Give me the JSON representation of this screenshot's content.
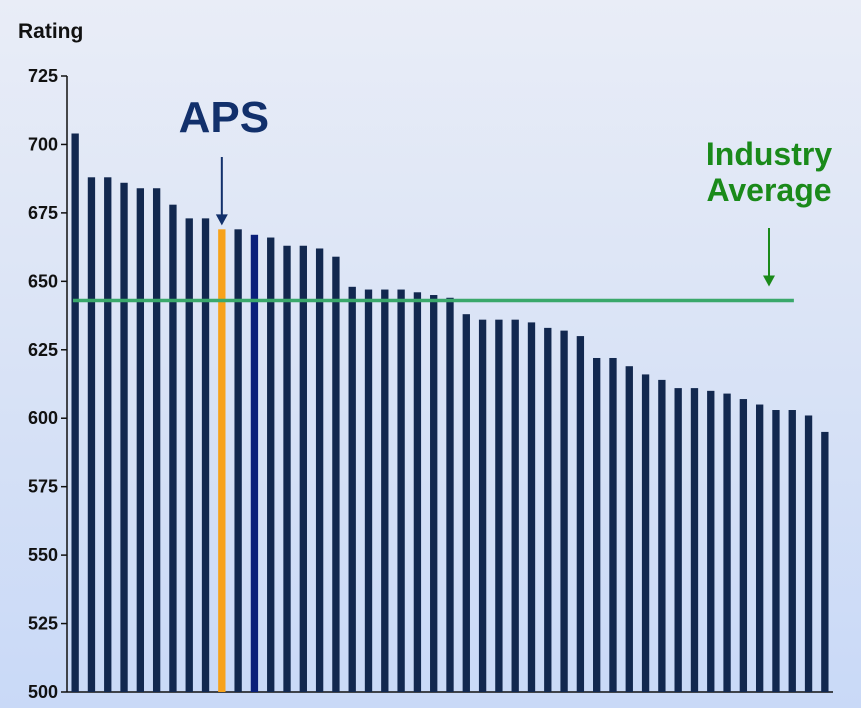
{
  "chart_data": {
    "type": "bar",
    "ylabel": "Rating",
    "ylim": [
      500,
      725
    ],
    "yticks": [
      500,
      525,
      550,
      575,
      600,
      625,
      650,
      675,
      700,
      725
    ],
    "values": [
      704,
      688,
      688,
      686,
      684,
      684,
      678,
      673,
      673,
      669,
      669,
      667,
      666,
      663,
      663,
      662,
      659,
      648,
      647,
      647,
      647,
      646,
      645,
      644,
      638,
      636,
      636,
      636,
      635,
      633,
      632,
      630,
      622,
      622,
      619,
      616,
      614,
      611,
      611,
      610,
      609,
      607,
      605,
      603,
      603,
      601,
      595
    ],
    "highlights": [
      {
        "index": 9,
        "color": "#f7a21b"
      },
      {
        "index": 11,
        "color": "#0a1f7a"
      }
    ],
    "bar_color": "#12284f",
    "reference_line": {
      "value": 643,
      "color": "#3aa86b"
    },
    "annotations": [
      {
        "text": "APS",
        "target_index": 9,
        "color": "#12306b"
      },
      {
        "text": [
          "Industry",
          "Average"
        ],
        "target": "reference_line",
        "color": "#1a8a1a"
      }
    ],
    "grid": false
  }
}
